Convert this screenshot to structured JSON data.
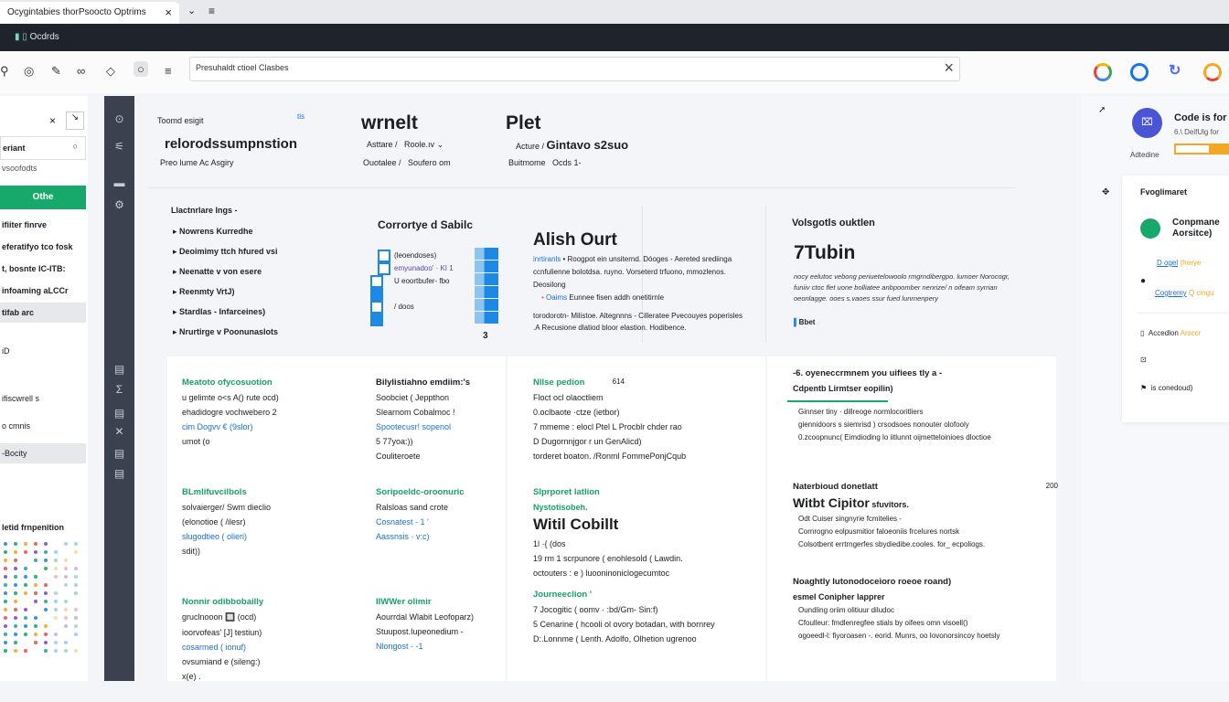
{
  "browser": {
    "tab_title": "Ocygintabies thorPsoocto Optrims",
    "app_name": "Ocdrds",
    "address": "Presuhaldt ctioel Clasbes"
  },
  "colors": {
    "accent_green": "#17a06a",
    "accent_blue": "#1e88e5",
    "dark_bar": "#1f232b",
    "strip": "#3b414e",
    "progress_orange": "#f5a623"
  },
  "left_panel": {
    "search_value": "eriant",
    "sub": "vsoofodts",
    "primary_button": "Othe",
    "items": [
      "ifiiter finrve",
      "eferatifyo tco fosk",
      "t, bosnte IC-ITB:",
      "infoaming aLCCr",
      "tifab arc",
      "iD",
      "ifiscwrell s",
      "o cmnis",
      "-Bocity"
    ],
    "chart_title": "letid frnpenition"
  },
  "header": {
    "label": "Toomd esigit",
    "badge": "tis",
    "subtitle": "relorodssumpnstion",
    "meta": "Preo lume Ac Asgiry",
    "col2_title": "wrnelt",
    "col2_row1_a": "Asttare /",
    "col2_row1_b": "Roole.ıv",
    "col2_row2_a": "Ouotalee /",
    "col2_row2_b": "Soufero om",
    "col3_title": "Plet",
    "col3_row1_a": "Acture /",
    "col3_row1_b": "Gintavo s2suo",
    "col3_row2_a": "Buitmome",
    "col3_row2_b": "Ocds 1-"
  },
  "section1": {
    "title": "Llactnrlare Ings -",
    "items": [
      "Nowrens Kurredhe",
      "Deoimimy ttch hfured vsi",
      "Neenatte v von esere",
      "Reenmty VrtJ)",
      "Stardlas - Infarceines)",
      "Nrurtirge v Poonunaslots"
    ]
  },
  "section2": {
    "title": "Corrortye d Sabilc",
    "rows": [
      "(leoendoses)",
      "emyunadoo' · KI 1",
      "U eoortbufer- fbo",
      "",
      "/ doos"
    ],
    "footer": "3"
  },
  "section3": {
    "title": "Alish Ourt",
    "p1_link": "inrtiranls",
    "p1": "• Roogpot ein unsiternd. Dóoges - Aereted srediinga ccnfulienne bolotdsa. ruyno. Vorseterd trfuono, mmozlenos. Deosilong",
    "bullet_link": "Oaims",
    "bullet": "Eunnee fisen addh onetitirnle",
    "p2": "torodorotn- Milistoe. Altegnnns - Cilleratee Pvecouyes poperisles .A Recusione dlatiod bloor elastion. Hodibence."
  },
  "section4": {
    "title": "Volsgotls ouktlen",
    "big": "7Tubin",
    "p": "nocy eelutoc vebong periuetelowoolo rmgrndibergpo. lumoer Norocogr, funiiv ctoc flet uone bolliatee anbpoomber nenrize/ n oifeam syrrian oeonlagge. ooes s.vaoes ssur fued lunrnenpery",
    "tag": "Bbet"
  },
  "grid": [
    {
      "title": "Meatoto ofycosuotion",
      "lines": [
        "u gelimte o<s A() rute ocd)",
        "ehadidogre vochwebero 2",
        "cim Dogvv € (9slor)",
        "umot (o"
      ]
    },
    {
      "title": "Bilylistiahno emdiim:'s",
      "lines": [
        "Soobciet ( Jeppthon",
        "Slearnom Cobalmoc !",
        "Spootecusr! sopenol",
        "5 77yoa:))",
        "Couliteroete"
      ]
    },
    {
      "title": "Nllse pedion",
      "badge": "614",
      "lines": [
        "Floct ocl olaoctliem",
        "0.oclbaote ·ctze (ietbor)",
        "7 mmeme : elocl Ptel L Procblr chder rao",
        "D Dugornnjgor r un GenAlicd)",
        "torderet boaton. /Ronml FommePonjCqub"
      ]
    },
    {
      "title": "-6. oyeneccrmnem you uifiees tly a -",
      "sub": "Cdpentb Lirmtser eopilin)",
      "lines": [
        "Ginnser tiny · dillreoge normlocoritliers",
        "giennidoors s siemrisd ) crsodsoes nonouter olofooly",
        "0.zcoopnunc( Eimdioding lo iitlunnt oijmetteloinioes dloctioe"
      ]
    },
    {
      "title": "BLmlifuvcilbols",
      "lines": [
        "solvaierger/ Swm dieclio",
        "(elonotioe ( /ilesr)",
        "slugodtieo ( olieri)",
        "sdit))"
      ]
    },
    {
      "title": "Soripoeldc-oroonuric",
      "lines": [
        "Ralsloas sand crote",
        "Cosnatest - 1 '",
        "Aassnsis · v:c)"
      ]
    },
    {
      "title": "Slprporet latlion",
      "sub": "Nystotisobeh.",
      "big": "Witil Cobillt",
      "lines": [
        "1l ·{ (dos",
        "19 rm 1 scrpunore ( enohlesold ( Lawdin.",
        "octouters : e ) luooninoniclogecumtoc"
      ]
    },
    {
      "title": "Naterbioud donetlatt",
      "badge": "200",
      "big": "Witbt Cipitor",
      "big_suffix": "sfuvitors.",
      "lines": [
        "Odt Cuiser singnyrie fcmitelies -",
        "Cornrogno eolpusmitior faloeoniis frcelures nortsk",
        "Colsotbent errtrngerfes sbydiedibe.cooles. for_ ecpoliogs."
      ]
    },
    {
      "title": "Nonnir odibbobailly",
      "lines": [
        "gruclnooon 🔲 (ocd)",
        "ioorvofeas' [J] testiun)",
        "cosarmed ( ionuf)",
        "ovsumiand e (sileng:)",
        "x(e) ."
      ]
    },
    {
      "title": "IIWWer olimir",
      "lines": [
        "Aourrdal Wlabit Leofoparz)",
        "Stuupost.Iupeonedium -",
        "Nlongost · -1"
      ]
    },
    {
      "title": "Journeeclion '",
      "lines": [
        "7 Jocogitic ( oomv · :bd/Gm- Sin:f)",
        "5 Cenarine ( hcooli ol ovory botadan, with bornrey",
        "D:.Lonnme ( Lenth. Adolfo, Olhetion ugrenoo"
      ]
    },
    {
      "title": "Noaghtly lutonodoceioro roeoe roand)",
      "sub": "esmel Conipher lapprer",
      "lines": [
        "Oundling oriim olitiuur diludoc",
        "Cfoulleur: fmdlenregfee stials by oifees omn visoell()",
        "ogoeedl-l: fiyoroasen -. eorid. Munrs, oo Iovonorsincoy hoetsly"
      ]
    }
  ],
  "right_panel": {
    "title": "Code is for",
    "sub": "6.\\ DeifUlg for",
    "status": "Adtedine",
    "progress_percent": 65,
    "card_title": "Fvoglimaret",
    "card_heading": "Conpmane Aorsitce)",
    "link1": "D ogel",
    "val1": "(frerye",
    "link2": "Cogtremy",
    "val2": "Q cingu",
    "row3_label": "Accedlon",
    "row3_val": "Arsccr",
    "row5": "is conedoud)"
  }
}
